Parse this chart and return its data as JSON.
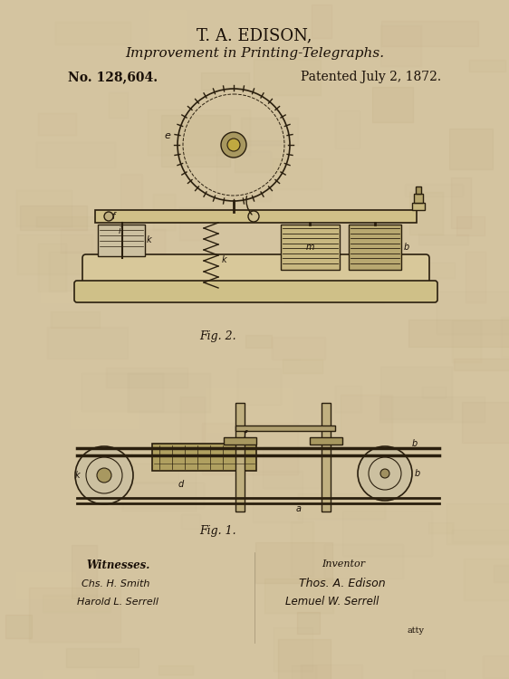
{
  "title1": "T. A. EDISON,",
  "title2": "Improvement in Printing-Telegraphs.",
  "patent_no": "No. 128,604.",
  "patent_date": "Patented July 2, 1872.",
  "fig2_label": "Fig. 2.",
  "fig1_label": "Fig. 1.",
  "witnesses_label": "Witnesses.",
  "witness1": "Chs. H. Smith",
  "witness2": "Harold L. Serrell",
  "inventor_label": "Inventor",
  "inventor_sig": "Thos. A. Edison",
  "attorney_sig": "Lemuel W. Serrell",
  "attorney_suffix": "atty",
  "bg_color": "#d4c4a0",
  "line_color": "#2a1f0e",
  "text_color": "#1a1008"
}
